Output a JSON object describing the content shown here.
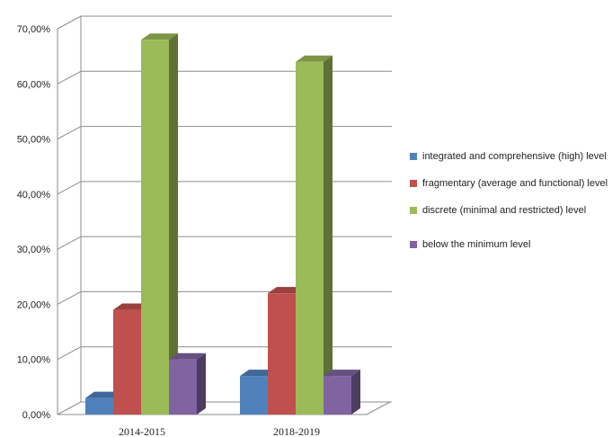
{
  "chart_data": {
    "type": "bar",
    "categories": [
      "2014-2015",
      "2018-2019"
    ],
    "series": [
      {
        "name": "integrated and comprehensive (high) level",
        "values": [
          3.0,
          7.0
        ],
        "color": "#4F81BD"
      },
      {
        "name": "fragmentary (average and functional) level",
        "values": [
          19.0,
          22.0
        ],
        "color": "#C0504D"
      },
      {
        "name": "discrete (minimal and restricted) level",
        "values": [
          68.0,
          64.0
        ],
        "color": "#9BBB59"
      },
      {
        "name": "below the minimum  level",
        "values": [
          10.0,
          7.0
        ],
        "color": "#8064A2"
      }
    ],
    "y_ticks": [
      "0,00%",
      "10,00%",
      "20,00%",
      "30,00%",
      "40,00%",
      "50,00%",
      "60,00%",
      "70,00%"
    ],
    "ylim": [
      0,
      70
    ],
    "grid": true,
    "style": "3d-column",
    "legend_position": "right",
    "title": "",
    "xlabel": "",
    "ylabel": ""
  }
}
